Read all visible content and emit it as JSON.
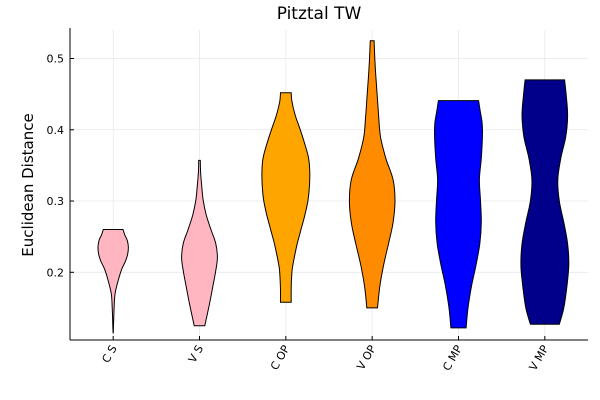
{
  "chart_data": {
    "type": "violin",
    "title": "Pitztal TW",
    "xlabel": "",
    "ylabel": "Euclidean Distance",
    "ylim": [
      0.105,
      0.54
    ],
    "yticks": [
      0.2,
      0.3,
      0.4,
      0.5
    ],
    "ytick_labels": [
      "0.2",
      "0.3",
      "0.4",
      "0.5"
    ],
    "grid": true,
    "categories": [
      "C S",
      "V S",
      "C OP",
      "V OP",
      "C MP",
      "V MP"
    ],
    "series": [
      {
        "category": "C S",
        "color": "#FFB6C1",
        "min": 0.115,
        "max": 0.26,
        "profile": [
          [
            0.115,
            0.003
          ],
          [
            0.13,
            0.012
          ],
          [
            0.15,
            0.025
          ],
          [
            0.17,
            0.05
          ],
          [
            0.19,
            0.14
          ],
          [
            0.205,
            0.23
          ],
          [
            0.215,
            0.32
          ],
          [
            0.225,
            0.38
          ],
          [
            0.235,
            0.4
          ],
          [
            0.245,
            0.37
          ],
          [
            0.252,
            0.31
          ],
          [
            0.26,
            0.26
          ]
        ]
      },
      {
        "category": "V S",
        "color": "#FFB6C1",
        "min": 0.125,
        "max": 0.357,
        "profile": [
          [
            0.125,
            0.14
          ],
          [
            0.14,
            0.2
          ],
          [
            0.16,
            0.28
          ],
          [
            0.18,
            0.35
          ],
          [
            0.2,
            0.42
          ],
          [
            0.22,
            0.47
          ],
          [
            0.24,
            0.43
          ],
          [
            0.26,
            0.3
          ],
          [
            0.28,
            0.18
          ],
          [
            0.3,
            0.1
          ],
          [
            0.32,
            0.06
          ],
          [
            0.34,
            0.03
          ],
          [
            0.357,
            0.02
          ]
        ]
      },
      {
        "category": "C OP",
        "color": "#FFA500",
        "min": 0.158,
        "max": 0.452,
        "profile": [
          [
            0.158,
            0.14
          ],
          [
            0.175,
            0.14
          ],
          [
            0.19,
            0.15
          ],
          [
            0.205,
            0.17
          ],
          [
            0.22,
            0.22
          ],
          [
            0.24,
            0.3
          ],
          [
            0.26,
            0.4
          ],
          [
            0.28,
            0.5
          ],
          [
            0.3,
            0.58
          ],
          [
            0.32,
            0.62
          ],
          [
            0.34,
            0.63
          ],
          [
            0.36,
            0.6
          ],
          [
            0.38,
            0.5
          ],
          [
            0.4,
            0.38
          ],
          [
            0.42,
            0.25
          ],
          [
            0.44,
            0.16
          ],
          [
            0.452,
            0.14
          ]
        ]
      },
      {
        "category": "V OP",
        "color": "#FF8C00",
        "min": 0.15,
        "max": 0.525,
        "profile": [
          [
            0.15,
            0.14
          ],
          [
            0.18,
            0.2
          ],
          [
            0.21,
            0.3
          ],
          [
            0.24,
            0.43
          ],
          [
            0.27,
            0.55
          ],
          [
            0.3,
            0.6
          ],
          [
            0.33,
            0.55
          ],
          [
            0.36,
            0.36
          ],
          [
            0.39,
            0.22
          ],
          [
            0.42,
            0.17
          ],
          [
            0.45,
            0.13
          ],
          [
            0.48,
            0.09
          ],
          [
            0.5,
            0.07
          ],
          [
            0.525,
            0.05
          ]
        ]
      },
      {
        "category": "C MP",
        "color": "#0000FF",
        "min": 0.122,
        "max": 0.441,
        "profile": [
          [
            0.122,
            0.2
          ],
          [
            0.15,
            0.25
          ],
          [
            0.18,
            0.34
          ],
          [
            0.21,
            0.46
          ],
          [
            0.24,
            0.56
          ],
          [
            0.27,
            0.6
          ],
          [
            0.3,
            0.58
          ],
          [
            0.33,
            0.55
          ],
          [
            0.36,
            0.6
          ],
          [
            0.39,
            0.63
          ],
          [
            0.41,
            0.62
          ],
          [
            0.43,
            0.56
          ],
          [
            0.441,
            0.53
          ]
        ]
      },
      {
        "category": "V MP",
        "color": "#00008B",
        "min": 0.127,
        "max": 0.47,
        "profile": [
          [
            0.127,
            0.38
          ],
          [
            0.15,
            0.5
          ],
          [
            0.18,
            0.58
          ],
          [
            0.21,
            0.63
          ],
          [
            0.24,
            0.6
          ],
          [
            0.27,
            0.5
          ],
          [
            0.3,
            0.38
          ],
          [
            0.33,
            0.34
          ],
          [
            0.36,
            0.42
          ],
          [
            0.39,
            0.55
          ],
          [
            0.42,
            0.6
          ],
          [
            0.45,
            0.56
          ],
          [
            0.47,
            0.52
          ]
        ]
      }
    ]
  }
}
